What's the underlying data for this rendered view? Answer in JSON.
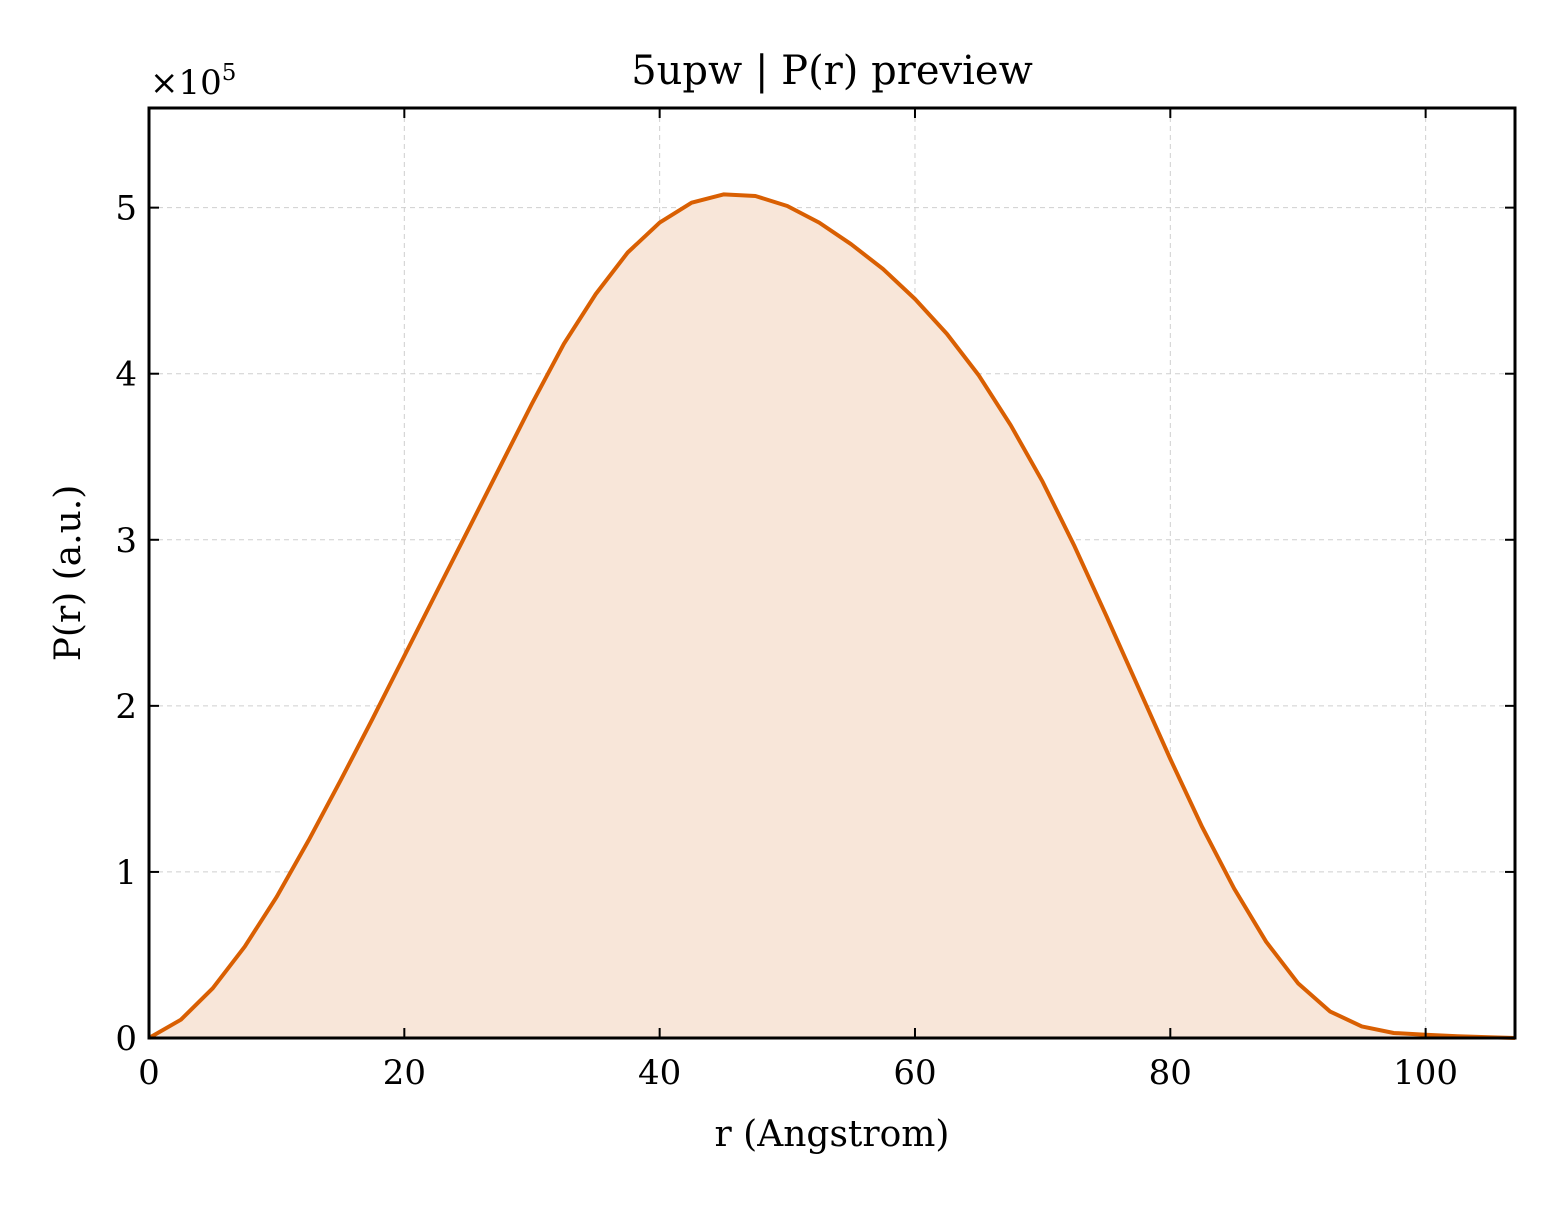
{
  "chart_data": {
    "type": "area",
    "title": "5upw | P(r) preview",
    "xlabel": "r (Angstrom)",
    "ylabel": "P(r) (a.u.)",
    "y_multiplier_base": "×10",
    "y_multiplier_exp": "5",
    "xlim": [
      0,
      107
    ],
    "ylim": [
      0,
      5.6
    ],
    "x_ticks": [
      0,
      20,
      40,
      60,
      80,
      100
    ],
    "x_tick_labels": [
      "0",
      "20",
      "40",
      "60",
      "80",
      "100"
    ],
    "y_ticks": [
      0,
      1,
      2,
      3,
      4,
      5
    ],
    "y_tick_labels": [
      "0",
      "1",
      "2",
      "3",
      "4",
      "5"
    ],
    "grid": true,
    "line_color": "#d95f02",
    "fill_color": "#f8e6d9",
    "series": [
      {
        "x": [
          0,
          2.5,
          5,
          7.5,
          10,
          12.5,
          15,
          17.5,
          20,
          22.5,
          25,
          27.5,
          30,
          32.5,
          35,
          37.5,
          40,
          42.5,
          45,
          47.5,
          50,
          52.5,
          55,
          57.5,
          60,
          62.5,
          65,
          67.5,
          70,
          72.5,
          75,
          77.5,
          80,
          82.5,
          85,
          87.5,
          90,
          92.5,
          95,
          97.5,
          100,
          102.5,
          105,
          107
        ],
        "values": [
          0,
          0.11,
          0.3,
          0.55,
          0.85,
          1.19,
          1.55,
          1.92,
          2.3,
          2.68,
          3.06,
          3.44,
          3.82,
          4.18,
          4.48,
          4.73,
          4.91,
          5.03,
          5.08,
          5.07,
          5.01,
          4.91,
          4.78,
          4.63,
          4.45,
          4.24,
          3.99,
          3.69,
          3.35,
          2.96,
          2.54,
          2.11,
          1.68,
          1.27,
          0.9,
          0.58,
          0.33,
          0.16,
          0.07,
          0.03,
          0.02,
          0.01,
          0.005,
          0
        ]
      }
    ]
  }
}
